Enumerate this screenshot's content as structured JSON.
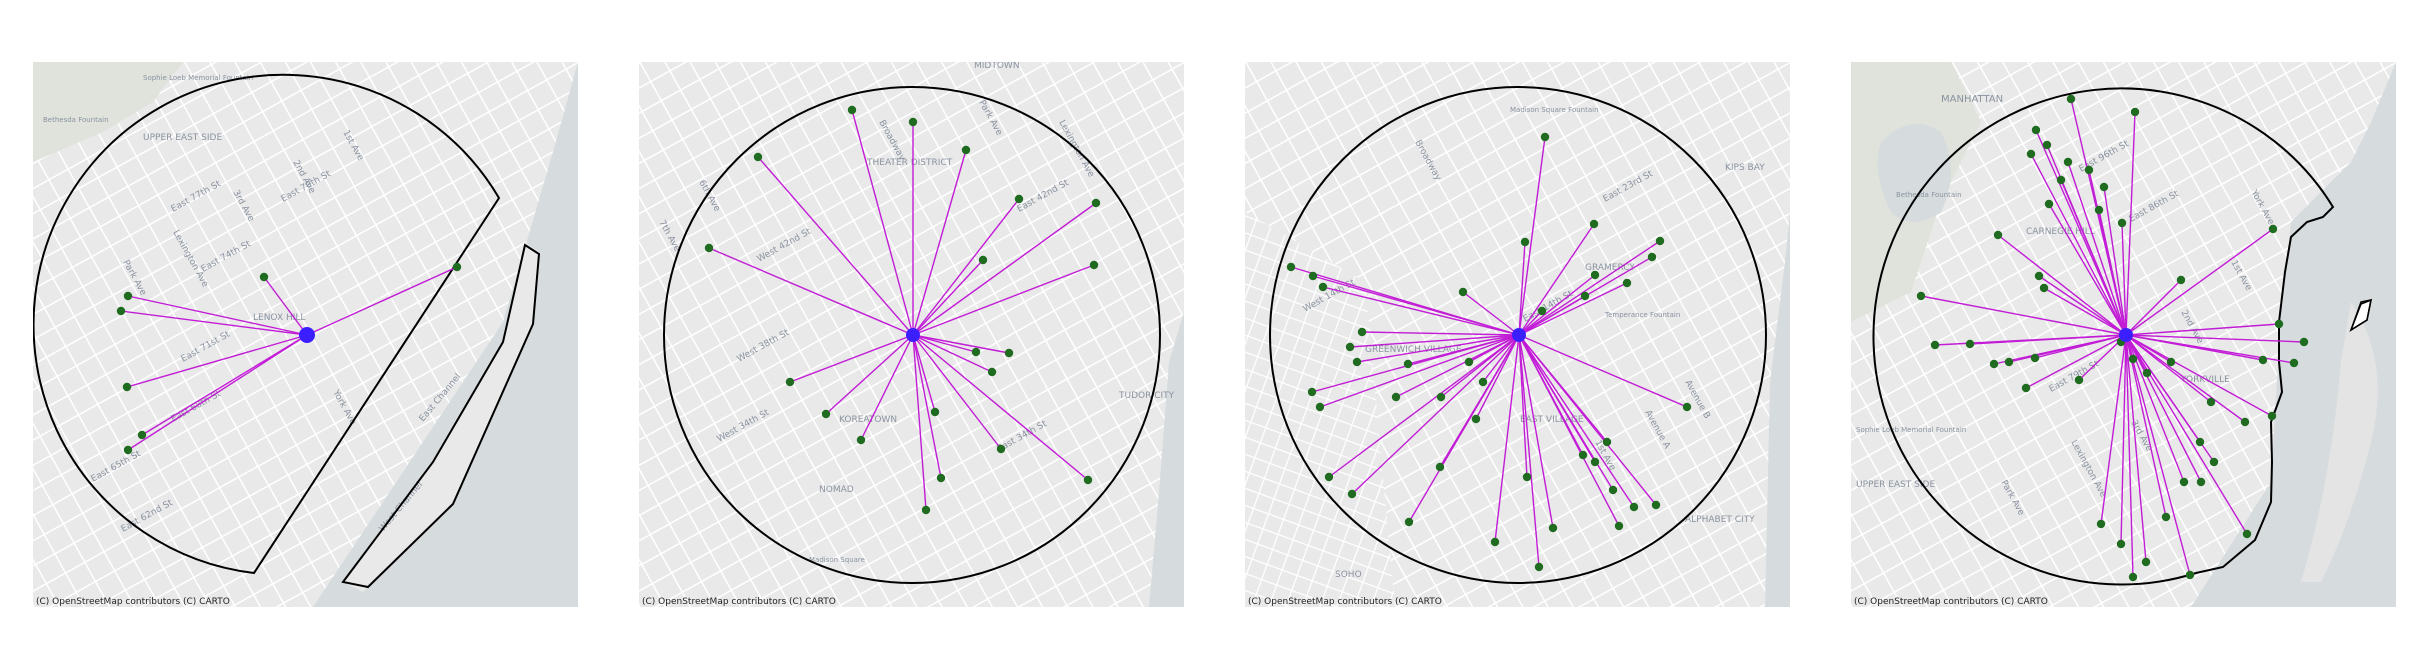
{
  "colors": {
    "map_background": "#ececec",
    "street_lines": "#ffffff",
    "water": "#d4dadc",
    "park": "#dfe3dc",
    "boundary": "#000000",
    "spokes": "#c21cd6",
    "stations": "#1f6b1f",
    "hub": "#3b1fff"
  },
  "attribution": "(C) OpenStreetMap contributors (C) CARTO",
  "panels": [
    {
      "id": "panel-1",
      "place_labels": [
        "Sophie Loeb Memorial Fountain",
        "Bethesda Fountain",
        "UPPER EAST SIDE",
        "LENOX HILL",
        "East 62nd St",
        "East 65th St",
        "East 68th St",
        "East 71st St",
        "East 74th St",
        "East 77th St",
        "East 79th St",
        "Park Ave",
        "Lexington Ave",
        "3rd Ave",
        "2nd Ave",
        "1st Ave",
        "York Ave",
        "East Channel",
        "West Channel"
      ]
    },
    {
      "id": "panel-2",
      "place_labels": [
        "MIDTOWN",
        "THEATER DISTRICT",
        "KOREATOWN",
        "NOMAD",
        "TUDOR CITY",
        "Madison Square",
        "West 42nd St",
        "West 38th St",
        "West 34th St",
        "East 42nd St",
        "East 34th St",
        "6th Ave",
        "7th Ave",
        "Broadway",
        "Park Ave",
        "Lexington Ave"
      ]
    },
    {
      "id": "panel-3",
      "place_labels": [
        "Madison Square Fountain",
        "KIPS BAY",
        "GRAMERCY",
        "Temperance Fountain",
        "GREENWICH VILLAGE",
        "EAST VILLAGE",
        "ALPHABET CITY",
        "SOHO",
        "East 23rd St",
        "East 14th St",
        "West 14th St",
        "Broadway",
        "1st Ave",
        "Avenue A",
        "Avenue B"
      ]
    },
    {
      "id": "panel-4",
      "place_labels": [
        "MANHATTAN",
        "Bethesda Fountain",
        "CARNEGIE HILL",
        "YORKVILLE",
        "UPPER EAST SIDE",
        "Sophie Loeb Memorial Fountain",
        "East 86th St",
        "East 96th St",
        "East 79th St",
        "Park Ave",
        "Lexington Ave",
        "3rd Ave",
        "2nd Ave",
        "1st Ave",
        "York Ave"
      ]
    }
  ]
}
